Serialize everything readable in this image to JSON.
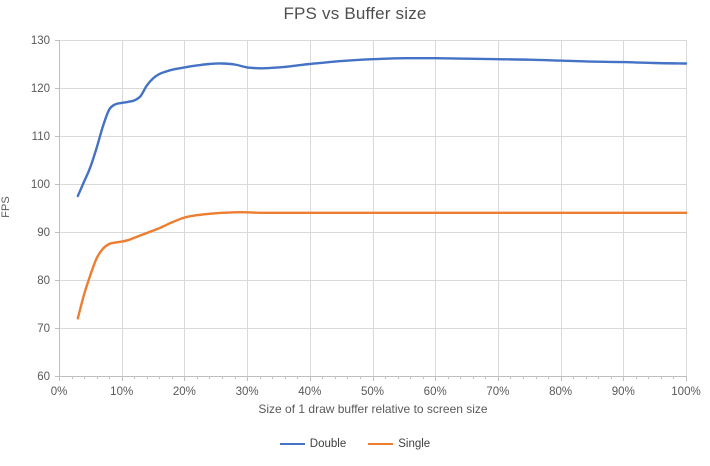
{
  "chart_data": {
    "type": "line",
    "title": "FPS vs Buffer size",
    "xlabel": "Size of 1 draw buffer relative to screen size",
    "ylabel": "FPS",
    "xlim": [
      0,
      100
    ],
    "ylim": [
      60,
      130
    ],
    "grid": true,
    "legend_position": "bottom",
    "x_tick_values": [
      0,
      10,
      20,
      30,
      40,
      50,
      60,
      70,
      80,
      90,
      100
    ],
    "x_tick_labels": [
      "0%",
      "10%",
      "20%",
      "30%",
      "40%",
      "50%",
      "60%",
      "70%",
      "80%",
      "90%",
      "100%"
    ],
    "x_minor_tick_step": 2,
    "y_tick_values": [
      60,
      70,
      80,
      90,
      100,
      110,
      120,
      130
    ],
    "y_tick_labels": [
      "60",
      "70",
      "80",
      "90",
      "100",
      "110",
      "120",
      "130"
    ],
    "colors": {
      "gridline": "#d9d9d9",
      "axis_line": "#bfbfbf",
      "tick_label": "#595959",
      "title_text": "#4f4f4f"
    },
    "series": [
      {
        "name": "Double",
        "color": "#4472c4",
        "x": [
          3,
          4,
          5,
          6,
          7,
          8,
          9,
          10,
          11,
          12,
          13,
          14,
          15,
          16,
          17,
          18,
          20,
          22,
          24,
          26,
          28,
          30,
          32,
          34,
          36,
          38,
          40,
          45,
          50,
          55,
          60,
          65,
          70,
          75,
          80,
          85,
          90,
          95,
          100
        ],
        "y": [
          97.5,
          100.5,
          103.5,
          107.5,
          112,
          115.5,
          116.6,
          116.9,
          117.1,
          117.4,
          118.3,
          120.5,
          122,
          122.9,
          123.4,
          123.8,
          124.3,
          124.7,
          125,
          125.1,
          124.9,
          124.3,
          124.1,
          124.2,
          124.4,
          124.7,
          125,
          125.6,
          126,
          126.2,
          126.2,
          126.1,
          126,
          125.9,
          125.7,
          125.5,
          125.4,
          125.2,
          125.1
        ]
      },
      {
        "name": "Single",
        "color": "#ed7d31",
        "x": [
          3,
          4,
          5,
          6,
          7,
          8,
          9,
          10,
          11,
          12,
          13,
          14,
          15,
          16,
          17,
          18,
          20,
          22,
          24,
          26,
          28,
          30,
          32,
          34,
          36,
          38,
          40,
          45,
          50,
          55,
          60,
          65,
          70,
          75,
          80,
          85,
          90,
          95,
          100
        ],
        "y": [
          72,
          77,
          81,
          84.5,
          86.5,
          87.5,
          87.8,
          88,
          88.3,
          88.8,
          89.3,
          89.8,
          90.3,
          90.8,
          91.4,
          92,
          93,
          93.5,
          93.8,
          94,
          94.1,
          94.1,
          94,
          94,
          94,
          94,
          94,
          94,
          94,
          94,
          94,
          94,
          94,
          94,
          94,
          94,
          94,
          94,
          94
        ]
      }
    ]
  }
}
